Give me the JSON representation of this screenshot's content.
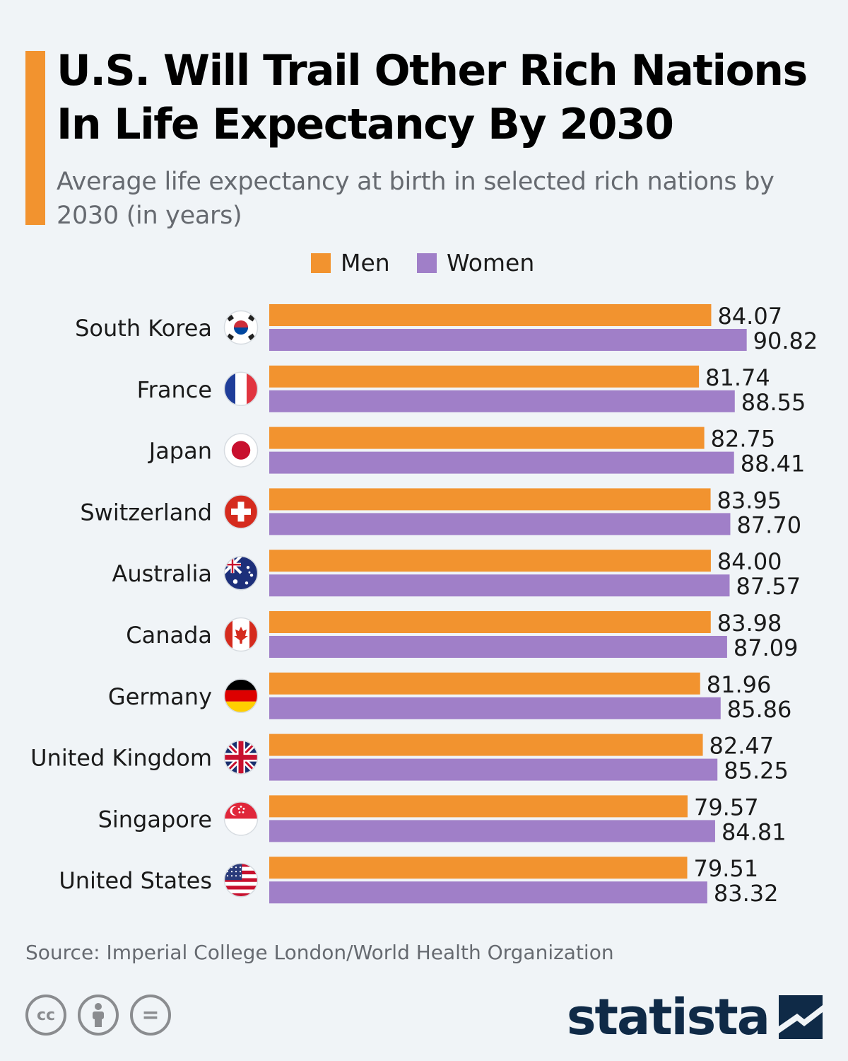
{
  "header": {
    "title": "U.S. Will Trail Other Rich Nations In Life Expectancy By 2030",
    "subtitle": "Average life expectancy at birth in selected rich nations by 2030 (in years)"
  },
  "colors": {
    "accent": "#f2932f",
    "men": "#f2932f",
    "women": "#a07fc8",
    "brand": "#0f2a47"
  },
  "chart_data": {
    "type": "bar",
    "orientation": "horizontal",
    "categories": [
      "South Korea",
      "France",
      "Japan",
      "Switzerland",
      "Australia",
      "Canada",
      "Germany",
      "United Kingdom",
      "Singapore",
      "United States"
    ],
    "category_icons": [
      "south-korea-flag-icon",
      "france-flag-icon",
      "japan-flag-icon",
      "switzerland-flag-icon",
      "australia-flag-icon",
      "canada-flag-icon",
      "germany-flag-icon",
      "united-kingdom-flag-icon",
      "singapore-flag-icon",
      "united-states-flag-icon"
    ],
    "series": [
      {
        "name": "Men",
        "values": [
          84.07,
          81.74,
          82.75,
          83.95,
          84.0,
          83.98,
          81.96,
          82.47,
          79.57,
          79.51
        ]
      },
      {
        "name": "Women",
        "values": [
          90.82,
          88.55,
          88.41,
          87.7,
          87.57,
          87.09,
          85.86,
          85.25,
          84.81,
          83.32
        ]
      }
    ],
    "value_labels": [
      [
        "84.07",
        "81.74",
        "82.75",
        "83.95",
        "84.00",
        "83.98",
        "81.96",
        "82.47",
        "79.57",
        "79.51"
      ],
      [
        "90.82",
        "88.55",
        "88.41",
        "87.70",
        "87.57",
        "87.09",
        "85.86",
        "85.25",
        "84.81",
        "83.32"
      ]
    ],
    "xlim": [
      0,
      91
    ],
    "grid": false,
    "legend_position": "top-center"
  },
  "footer": {
    "source": "Source: Imperial College London/World Health Organization",
    "brand": "statista",
    "license_icons": [
      "creative-commons-icon",
      "attribution-icon",
      "no-derivatives-icon"
    ],
    "cc_label": "cc",
    "nd_label": "="
  }
}
